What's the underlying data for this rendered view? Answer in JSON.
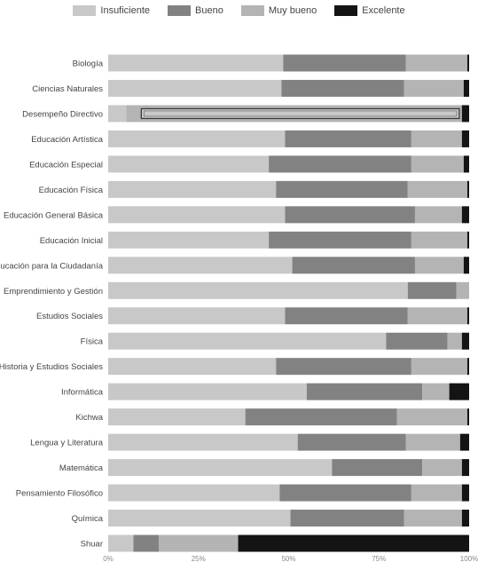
{
  "chart_data": {
    "type": "bar",
    "orientation": "horizontal",
    "stacked": "percent",
    "legend_position": "top",
    "grid": false,
    "xlim": [
      0,
      100
    ],
    "x_ticks": [
      "0%",
      "25%",
      "50%",
      "75%",
      "100%"
    ],
    "categories": [
      "Biología",
      "Ciencias Naturales",
      "Desempeño Directivo",
      "Educación Artística",
      "Educación Especial",
      "Educación Física",
      "Educación General Básica",
      "Educación Inicial",
      "Educación para la Ciudadanía",
      "Emprendimiento y Gestión",
      "Estudios Sociales",
      "Física",
      "Historia y Estudios Sociales",
      "Informática",
      "Kichwa",
      "Lengua y Literatura",
      "Matemática",
      "Pensamiento Filosófico",
      "Química",
      "Shuar"
    ],
    "series": [
      {
        "name": "Insuficiente",
        "color": "#c8c8c8",
        "values": [
          48.5,
          48,
          5,
          49,
          44.5,
          46.5,
          49,
          44.5,
          51,
          83,
          49,
          77,
          46.5,
          55,
          38,
          52.5,
          62,
          47.5,
          50.5,
          7
        ]
      },
      {
        "name": "Bueno",
        "color": "#828282",
        "values": [
          34,
          34,
          0,
          35,
          39.5,
          36.5,
          36,
          39.5,
          34,
          13.5,
          34,
          17,
          37.5,
          32,
          42,
          30,
          25,
          36.5,
          31.5,
          7
        ]
      },
      {
        "name": "Muy bueno",
        "color": "#b4b4b4",
        "values": [
          17,
          16.5,
          93,
          14,
          14.5,
          16.5,
          13,
          15.5,
          13.5,
          3.5,
          16.5,
          4,
          15.5,
          7.5,
          19.5,
          15,
          11,
          14,
          16,
          22
        ]
      },
      {
        "name": "Excelente",
        "color": "#141414",
        "values": [
          0.5,
          1.5,
          2,
          2,
          1.5,
          0.5,
          2,
          0.5,
          1.5,
          0,
          0.5,
          2,
          0.5,
          5.5,
          0.5,
          2.5,
          2,
          2,
          2,
          64
        ]
      }
    ],
    "highlight": {
      "category": "Desempeño Directivo",
      "style": "outlined-bar"
    }
  }
}
